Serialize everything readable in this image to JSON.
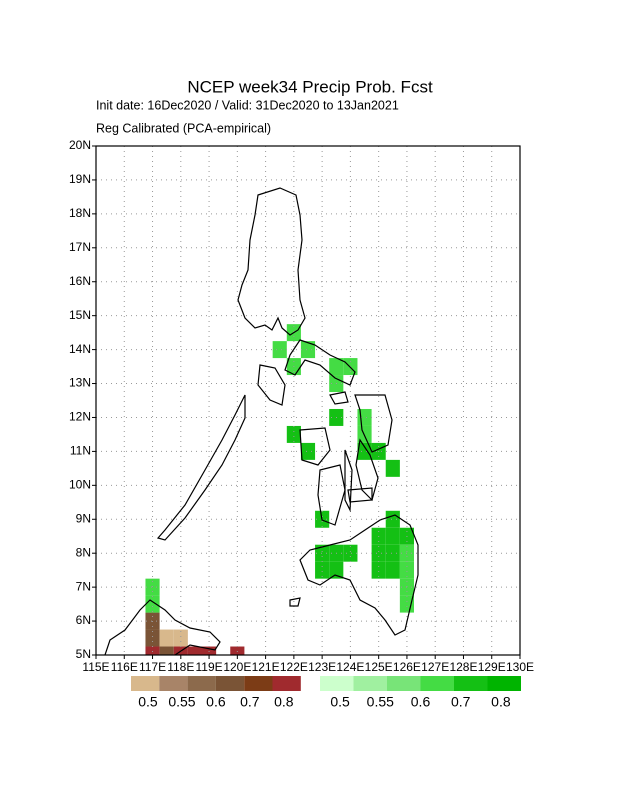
{
  "title": "NCEP week34 Precip Prob. Fcst",
  "subtitle": "Init date: 16Dec2020 / Valid: 31Dec2020 to 13Jan2021",
  "note": "Reg Calibrated (PCA-empirical)",
  "map": {
    "xlim": [
      115,
      130
    ],
    "ylim": [
      5,
      20
    ],
    "grid": true,
    "xticks": [
      {
        "value": 115,
        "label": "115E"
      },
      {
        "value": 116,
        "label": "116E"
      },
      {
        "value": 117,
        "label": "117E"
      },
      {
        "value": 118,
        "label": "118E"
      },
      {
        "value": 119,
        "label": "119E"
      },
      {
        "value": 120,
        "label": "120E"
      },
      {
        "value": 121,
        "label": "121E"
      },
      {
        "value": 122,
        "label": "122E"
      },
      {
        "value": 123,
        "label": "123E"
      },
      {
        "value": 124,
        "label": "124E"
      },
      {
        "value": 125,
        "label": "125E"
      },
      {
        "value": 126,
        "label": "126E"
      },
      {
        "value": 127,
        "label": "127E"
      },
      {
        "value": 128,
        "label": "128E"
      },
      {
        "value": 129,
        "label": "129E"
      },
      {
        "value": 130,
        "label": "130E"
      }
    ],
    "yticks": [
      {
        "value": 5,
        "label": "5N"
      },
      {
        "value": 6,
        "label": "6N"
      },
      {
        "value": 7,
        "label": "7N"
      },
      {
        "value": 8,
        "label": "8N"
      },
      {
        "value": 9,
        "label": "9N"
      },
      {
        "value": 10,
        "label": "10N"
      },
      {
        "value": 11,
        "label": "11N"
      },
      {
        "value": 12,
        "label": "12N"
      },
      {
        "value": 13,
        "label": "13N"
      },
      {
        "value": 14,
        "label": "14N"
      },
      {
        "value": 15,
        "label": "15N"
      },
      {
        "value": 16,
        "label": "16N"
      },
      {
        "value": 17,
        "label": "17N"
      },
      {
        "value": 18,
        "label": "18N"
      },
      {
        "value": 19,
        "label": "19N"
      },
      {
        "value": 20,
        "label": "20N"
      }
    ]
  },
  "below": {
    "colors": [
      "#d8b88c",
      "#a88468",
      "#8c6a4c",
      "#7a5436",
      "#7c3c16",
      "#a02a2e"
    ],
    "levels": [
      0.5,
      0.55,
      0.6,
      0.7,
      0.8
    ],
    "cells": [
      {
        "lon": 117.0,
        "lat": 6.0,
        "prob": 0.62
      },
      {
        "lon": 117.0,
        "lat": 5.5,
        "prob": 0.62
      },
      {
        "lon": 117.5,
        "lat": 5.5,
        "prob": 0.45
      },
      {
        "lon": 118.0,
        "lat": 5.5,
        "prob": 0.45
      },
      {
        "lon": 117.0,
        "lat": 5.0,
        "prob": 0.85
      },
      {
        "lon": 117.5,
        "lat": 5.0,
        "prob": 0.62
      },
      {
        "lon": 118.0,
        "lat": 5.0,
        "prob": 0.85
      },
      {
        "lon": 118.5,
        "lat": 5.0,
        "prob": 0.85
      },
      {
        "lon": 119.0,
        "lat": 5.0,
        "prob": 0.85
      },
      {
        "lon": 120.0,
        "lat": 5.0,
        "prob": 0.85
      }
    ]
  },
  "above": {
    "colors": [
      "#ccffcc",
      "#a0f0a0",
      "#78e478",
      "#44dc44",
      "#14c014",
      "#00b400"
    ],
    "levels": [
      0.5,
      0.55,
      0.6,
      0.7,
      0.8
    ],
    "cells": [
      {
        "lon": 117.0,
        "lat": 7.0,
        "prob": 0.65
      },
      {
        "lon": 117.0,
        "lat": 6.5,
        "prob": 0.65
      },
      {
        "lon": 122.0,
        "lat": 14.5,
        "prob": 0.65
      },
      {
        "lon": 121.5,
        "lat": 14.0,
        "prob": 0.65
      },
      {
        "lon": 122.5,
        "lat": 14.0,
        "prob": 0.65
      },
      {
        "lon": 122.0,
        "lat": 13.5,
        "prob": 0.65
      },
      {
        "lon": 123.5,
        "lat": 13.5,
        "prob": 0.65
      },
      {
        "lon": 124.0,
        "lat": 13.5,
        "prob": 0.65
      },
      {
        "lon": 123.5,
        "lat": 13.0,
        "prob": 0.65
      },
      {
        "lon": 123.5,
        "lat": 12.0,
        "prob": 0.75
      },
      {
        "lon": 124.5,
        "lat": 12.0,
        "prob": 0.65
      },
      {
        "lon": 124.5,
        "lat": 11.5,
        "prob": 0.65
      },
      {
        "lon": 124.5,
        "lat": 11.0,
        "prob": 0.75
      },
      {
        "lon": 125.0,
        "lat": 11.0,
        "prob": 0.75
      },
      {
        "lon": 125.5,
        "lat": 10.5,
        "prob": 0.75
      },
      {
        "lon": 122.0,
        "lat": 11.5,
        "prob": 0.75
      },
      {
        "lon": 122.5,
        "lat": 11.0,
        "prob": 0.75
      },
      {
        "lon": 123.0,
        "lat": 9.0,
        "prob": 0.75
      },
      {
        "lon": 123.0,
        "lat": 8.0,
        "prob": 0.75
      },
      {
        "lon": 123.5,
        "lat": 8.0,
        "prob": 0.75
      },
      {
        "lon": 124.0,
        "lat": 8.0,
        "prob": 0.75
      },
      {
        "lon": 123.0,
        "lat": 7.5,
        "prob": 0.75
      },
      {
        "lon": 123.5,
        "lat": 7.5,
        "prob": 0.75
      },
      {
        "lon": 125.5,
        "lat": 9.0,
        "prob": 0.75
      },
      {
        "lon": 125.0,
        "lat": 8.5,
        "prob": 0.75
      },
      {
        "lon": 125.5,
        "lat": 8.5,
        "prob": 0.75
      },
      {
        "lon": 126.0,
        "lat": 8.5,
        "prob": 0.75
      },
      {
        "lon": 125.0,
        "lat": 8.0,
        "prob": 0.75
      },
      {
        "lon": 125.5,
        "lat": 8.0,
        "prob": 0.75
      },
      {
        "lon": 126.0,
        "lat": 8.0,
        "prob": 0.65
      },
      {
        "lon": 125.0,
        "lat": 7.5,
        "prob": 0.75
      },
      {
        "lon": 125.5,
        "lat": 7.5,
        "prob": 0.75
      },
      {
        "lon": 126.0,
        "lat": 7.5,
        "prob": 0.65
      },
      {
        "lon": 126.0,
        "lat": 7.0,
        "prob": 0.65
      },
      {
        "lon": 126.0,
        "lat": 6.5,
        "prob": 0.65
      }
    ]
  }
}
